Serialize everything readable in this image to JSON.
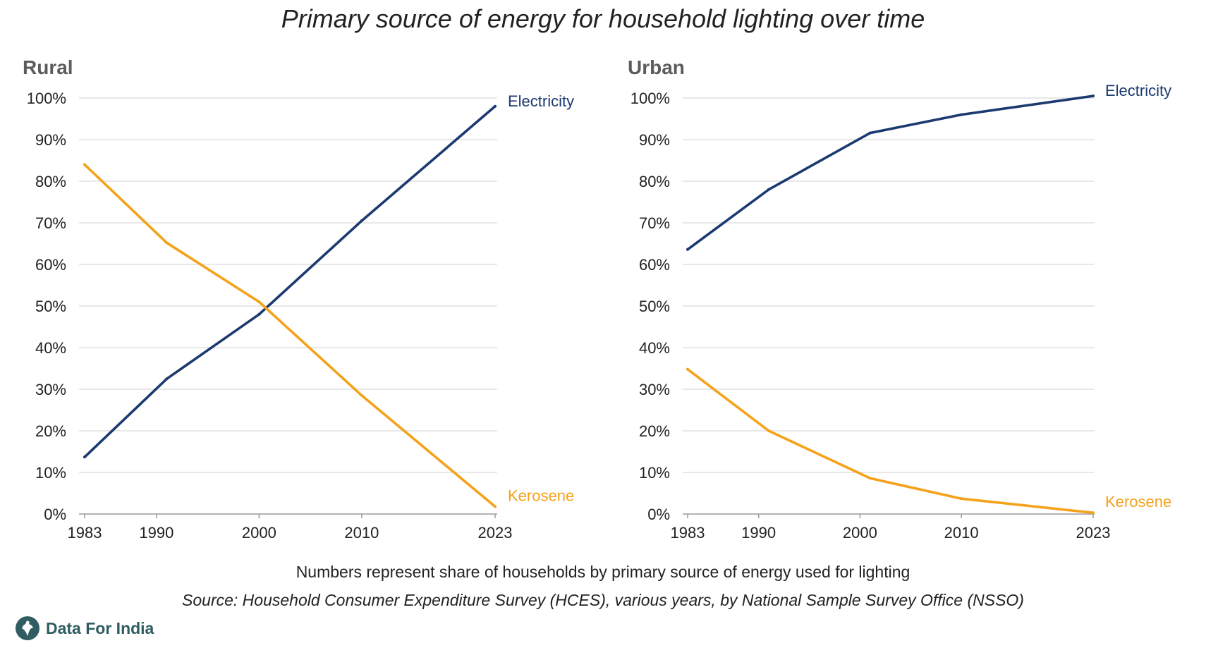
{
  "title": "Primary source of energy for household lighting over time",
  "note": "Numbers represent share of households by primary source of energy used for lighting",
  "source": "Source: Household Consumer Expenditure Survey (HCES), various years, by National Sample Survey Office (NSSO)",
  "brand": "Data For India",
  "colors": {
    "electricity": "#1b3a6f",
    "kerosene": "#f5a21b",
    "brand": "#2f5d62"
  },
  "chart_data": [
    {
      "type": "line",
      "title": "Rural",
      "x": [
        1983,
        1991,
        2000,
        2010,
        2023
      ],
      "x_ticks": [
        "1983",
        "1990",
        "2000",
        "2010",
        "2023"
      ],
      "x_tick_values": [
        1983,
        1990,
        2000,
        2010,
        2023
      ],
      "y_ticks": [
        "0%",
        "10%",
        "20%",
        "30%",
        "40%",
        "50%",
        "60%",
        "70%",
        "80%",
        "90%",
        "100%"
      ],
      "ylim": [
        0,
        100
      ],
      "grid": true,
      "series": [
        {
          "name": "Electricity",
          "values": [
            13.7,
            32.5,
            48,
            70.5,
            98
          ],
          "color": "#1b3a6f"
        },
        {
          "name": "Kerosene",
          "values": [
            84,
            65.2,
            51,
            28.5,
            1.8
          ],
          "color": "#f5a21b"
        }
      ]
    },
    {
      "type": "line",
      "title": "Urban",
      "x": [
        1983,
        1991,
        2001,
        2010,
        2023
      ],
      "x_ticks": [
        "1983",
        "1990",
        "2000",
        "2010",
        "2023"
      ],
      "x_tick_values": [
        1983,
        1990,
        2000,
        2010,
        2023
      ],
      "y_ticks": [
        "0%",
        "10%",
        "20%",
        "30%",
        "40%",
        "50%",
        "60%",
        "70%",
        "80%",
        "90%",
        "100%"
      ],
      "ylim": [
        0,
        100
      ],
      "grid": true,
      "series": [
        {
          "name": "Electricity",
          "values": [
            63.6,
            78,
            91.6,
            96,
            100.5
          ],
          "color": "#1b3a6f"
        },
        {
          "name": "Kerosene",
          "values": [
            34.8,
            20,
            8.6,
            3.7,
            0.3
          ],
          "color": "#f5a21b"
        }
      ]
    }
  ]
}
